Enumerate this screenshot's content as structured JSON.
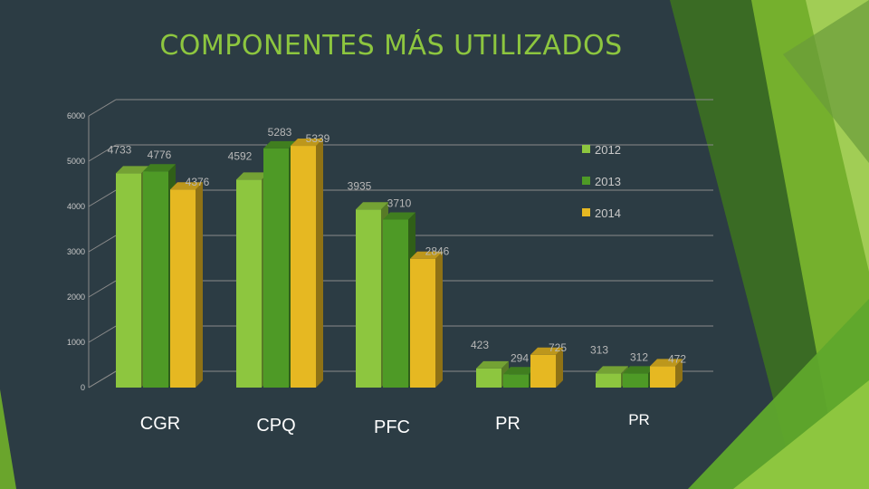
{
  "slide": {
    "title": "COMPONENTES  MÁS UTILIZADOS"
  },
  "chart_data": {
    "type": "bar",
    "title": "",
    "xlabel": "",
    "ylabel": "",
    "ylim": [
      0,
      6000
    ],
    "yticks": [
      "0",
      "1000",
      "2000",
      "3000",
      "4000",
      "5000",
      "6000"
    ],
    "categories": [
      "CGR",
      "CPQ",
      "PFC",
      "PR",
      "PR"
    ],
    "series": [
      {
        "name": "2012",
        "color": "#8dc63f",
        "values": [
          4733,
          4592,
          3935,
          423,
          313
        ]
      },
      {
        "name": "2013",
        "color": "#4e9a26",
        "values": [
          4776,
          5283,
          3710,
          294,
          312
        ]
      },
      {
        "name": "2014",
        "color": "#e6b822",
        "values": [
          4376,
          5339,
          2846,
          725,
          472
        ]
      }
    ],
    "grid": true,
    "legend": "right"
  },
  "colors": {
    "background": "#2c3c44",
    "accent_green": "#8dc63f",
    "dark_green": "#4e9a26",
    "gold": "#e6b822"
  }
}
